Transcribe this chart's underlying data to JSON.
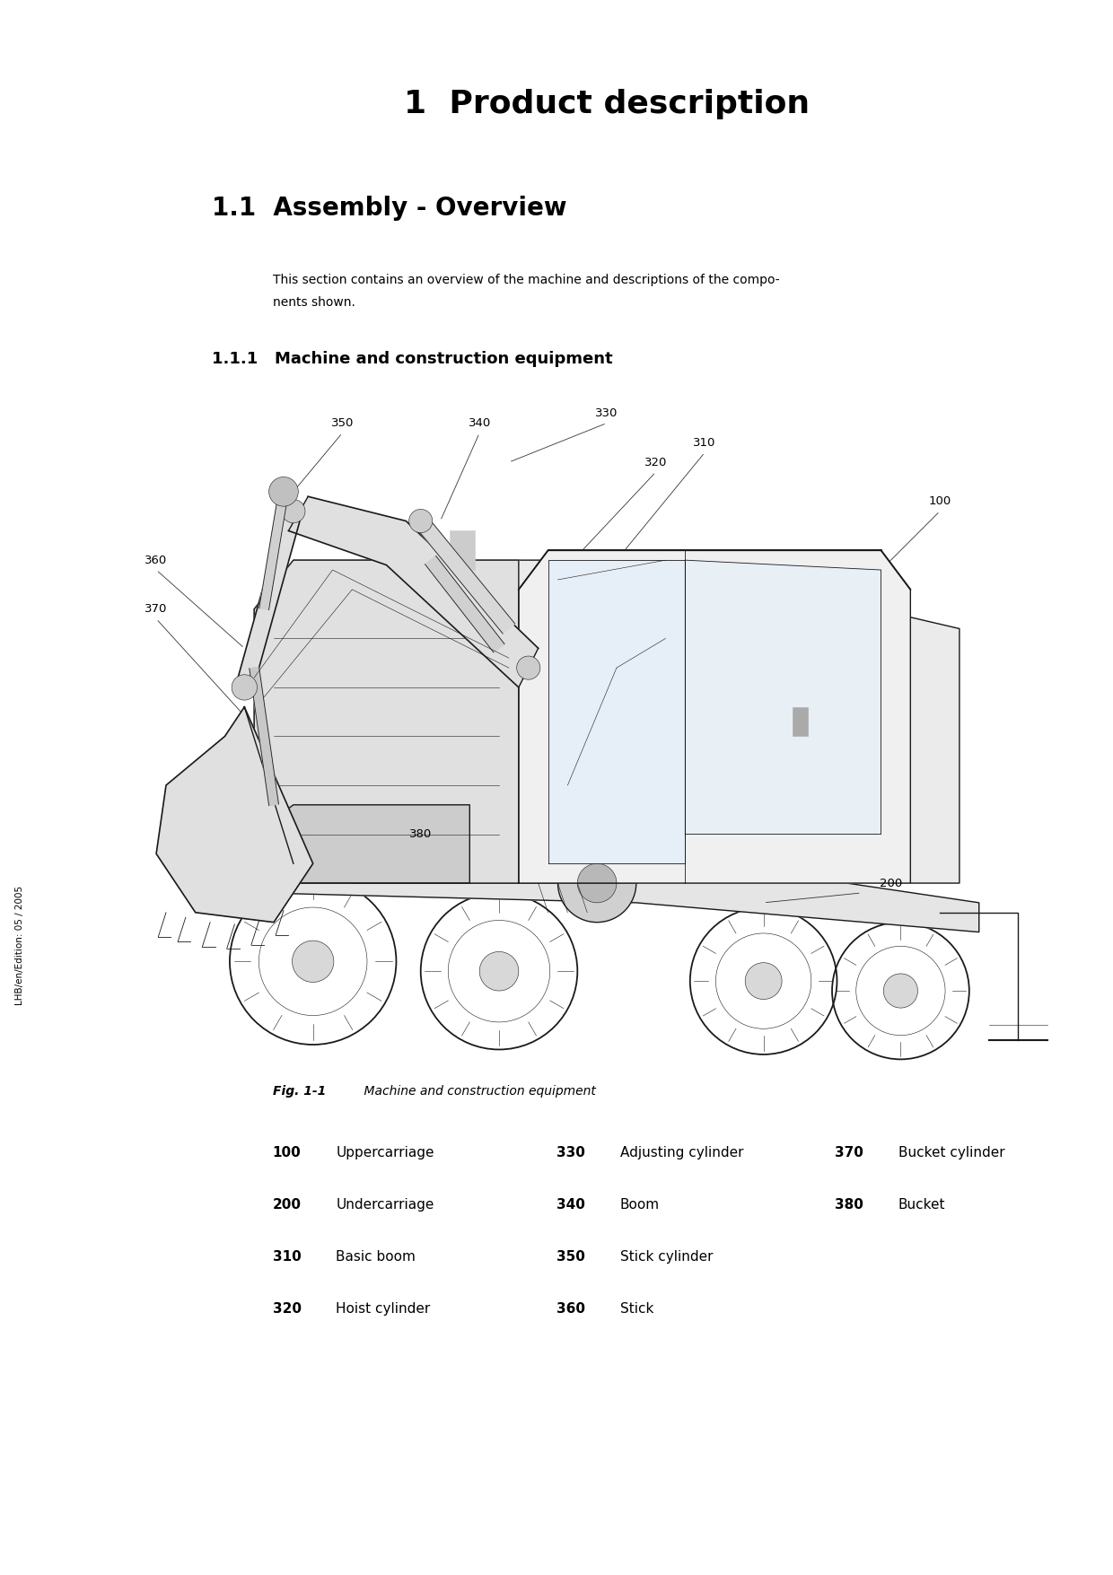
{
  "background_color": "#ffffff",
  "page_width": 12.4,
  "page_height": 17.55,
  "title": "1  Product description",
  "section_title": "1.1  Assembly - Overview",
  "subsection_title": "1.1.1   Machine and construction equipment",
  "body_text_line1": "This section contains an overview of the machine and descriptions of the compo-",
  "body_text_line2": "nents shown.",
  "fig_caption_bold": "Fig. 1-1",
  "fig_caption_italic": "    Machine and construction equipment",
  "sidebar_text": "LHB/en/Edition: 05 / 2005",
  "legend_col1": [
    {
      "code": "100",
      "label": "Uppercarriage"
    },
    {
      "code": "200",
      "label": "Undercarriage"
    },
    {
      "code": "310",
      "label": "Basic boom"
    },
    {
      "code": "320",
      "label": "Hoist cylinder"
    }
  ],
  "legend_col2": [
    {
      "code": "330",
      "label": "Adjusting cylinder"
    },
    {
      "code": "340",
      "label": "Boom"
    },
    {
      "code": "350",
      "label": "Stick cylinder"
    },
    {
      "code": "360",
      "label": "Stick"
    }
  ],
  "legend_col3": [
    {
      "code": "370",
      "label": "Bucket cylinder"
    },
    {
      "code": "380",
      "label": "Bucket"
    }
  ],
  "title_fontsize": 26,
  "section_fontsize": 20,
  "subsection_fontsize": 13,
  "body_fontsize": 10,
  "legend_fontsize": 11,
  "caption_fontsize": 10
}
